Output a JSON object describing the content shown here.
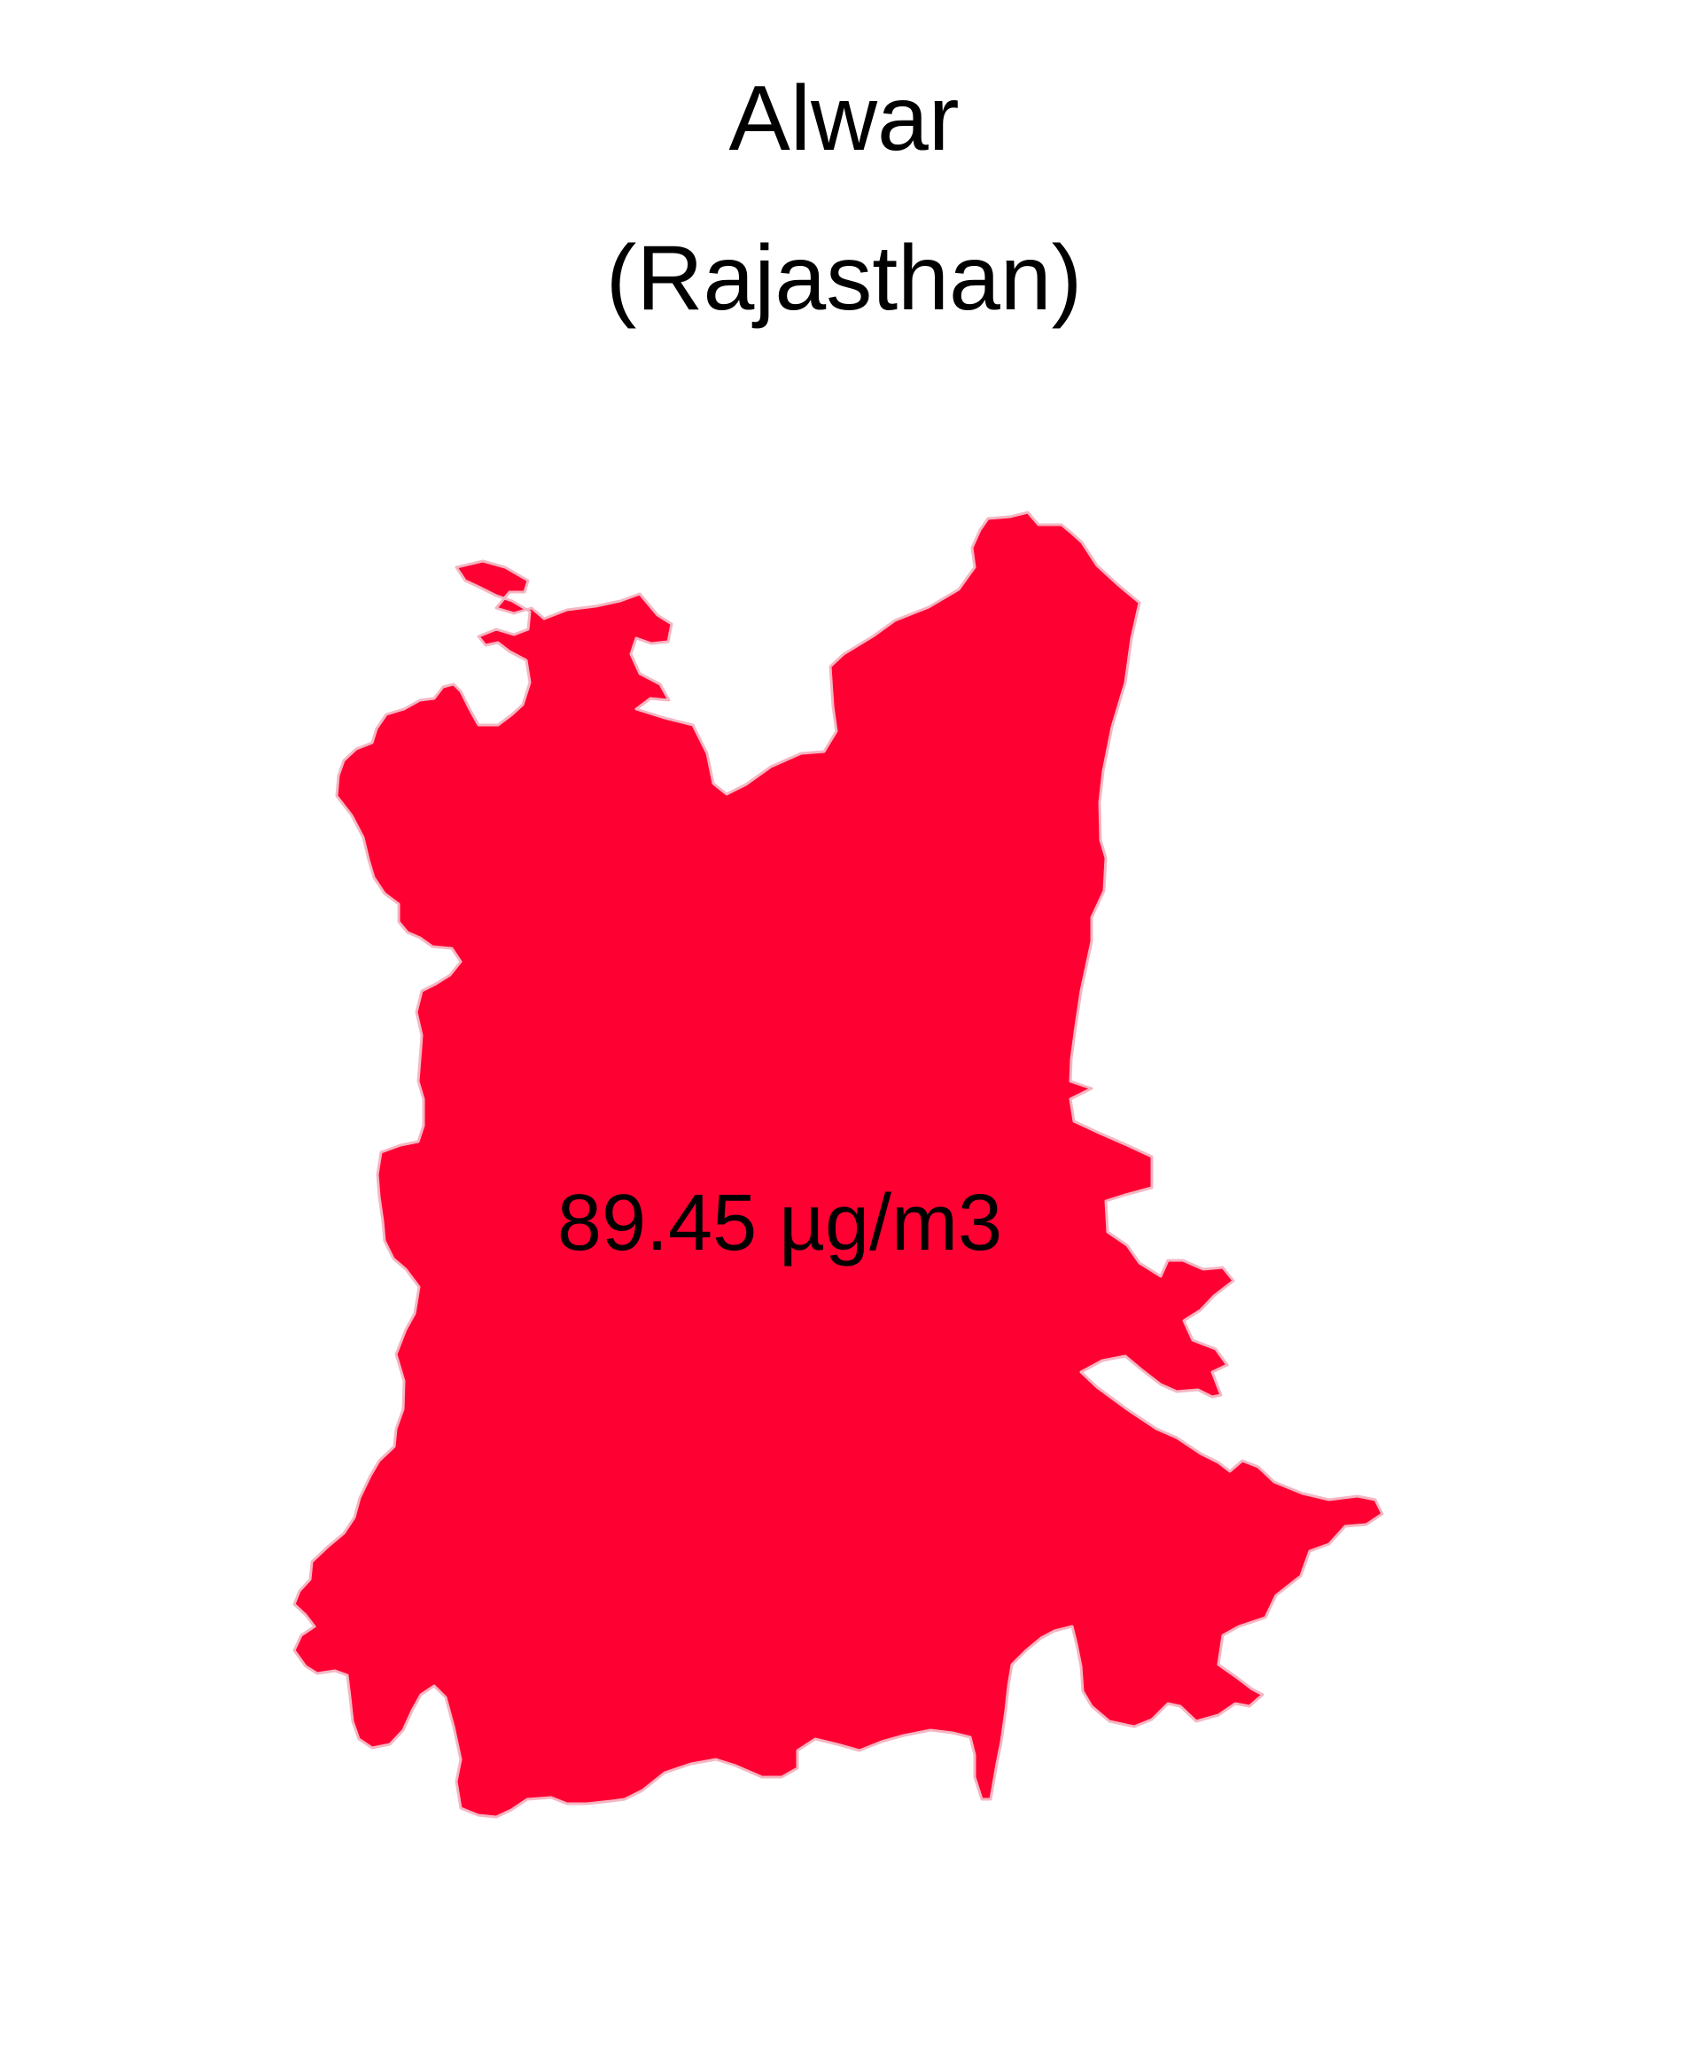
{
  "map": {
    "district_name": "Alwar",
    "state_name": "(Rajasthan)",
    "value_label": "89.45 µg/m3",
    "fill_color": "#ff0033",
    "stroke_color": "#f4b6c2"
  }
}
